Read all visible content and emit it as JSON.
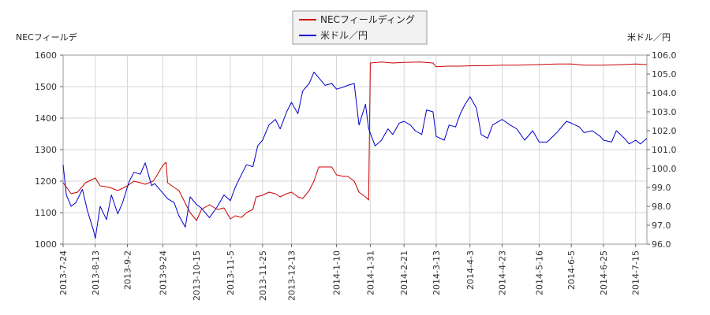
{
  "chart_data": {
    "type": "line",
    "legend_placement": "top-center",
    "grid": true,
    "left_axis_label": "NECフィールデ",
    "right_axis_label": "米ドル／円",
    "left_ylim": [
      1000,
      1600
    ],
    "right_ylim": [
      96.0,
      106.0
    ],
    "left_ticks": [
      "1000",
      "1100",
      "1200",
      "1300",
      "1400",
      "1500",
      "1600"
    ],
    "right_ticks": [
      "96.0",
      "97.0",
      "98.0",
      "99.0",
      "100.0",
      "101.0",
      "102.0",
      "103.0",
      "104.0",
      "105.0",
      "106.0"
    ],
    "x_tick_labels": [
      "2013-7-24",
      "2013-8-13",
      "2013-9-2",
      "2013-9-24",
      "2013-10-15",
      "2013-11-5",
      "2013-11-25",
      "2013-12-13",
      "2014-1-10",
      "2014-1-31",
      "2014-2-21",
      "2014-3-13",
      "2014-4-3",
      "2014-4-23",
      "2014-5-16",
      "2014-6-5",
      "2014-6-25",
      "2014-7-15"
    ],
    "x_range": [
      "2013-7-24",
      "2014-7-22"
    ],
    "series": [
      {
        "name": "NECフィールディング",
        "color": "#cc0000",
        "axis": "left",
        "points": [
          [
            "2013-7-24",
            1195
          ],
          [
            "2013-7-29",
            1160
          ],
          [
            "2013-8-2",
            1165
          ],
          [
            "2013-8-7",
            1195
          ],
          [
            "2013-8-13",
            1210
          ],
          [
            "2013-8-16",
            1185
          ],
          [
            "2013-8-22",
            1180
          ],
          [
            "2013-8-27",
            1170
          ],
          [
            "2013-9-2",
            1185
          ],
          [
            "2013-9-6",
            1200
          ],
          [
            "2013-9-10",
            1195
          ],
          [
            "2013-9-13",
            1190
          ],
          [
            "2013-9-18",
            1200
          ],
          [
            "2013-9-20",
            1215
          ],
          [
            "2013-9-24",
            1250
          ],
          [
            "2013-9-26",
            1260
          ],
          [
            "2013-9-27",
            1195
          ],
          [
            "2013-10-1",
            1180
          ],
          [
            "2013-10-4",
            1170
          ],
          [
            "2013-10-8",
            1130
          ],
          [
            "2013-10-11",
            1100
          ],
          [
            "2013-10-15",
            1075
          ],
          [
            "2013-10-18",
            1110
          ],
          [
            "2013-10-23",
            1125
          ],
          [
            "2013-10-28",
            1110
          ],
          [
            "2013-11-1",
            1115
          ],
          [
            "2013-11-5",
            1080
          ],
          [
            "2013-11-8",
            1090
          ],
          [
            "2013-11-12",
            1085
          ],
          [
            "2013-11-15",
            1100
          ],
          [
            "2013-11-19",
            1110
          ],
          [
            "2013-11-21",
            1150
          ],
          [
            "2013-11-25",
            1155
          ],
          [
            "2013-11-29",
            1165
          ],
          [
            "2013-12-3",
            1160
          ],
          [
            "2013-12-6",
            1150
          ],
          [
            "2013-12-10",
            1160
          ],
          [
            "2013-12-13",
            1165
          ],
          [
            "2013-12-17",
            1150
          ],
          [
            "2013-12-20",
            1145
          ],
          [
            "2013-12-24",
            1170
          ],
          [
            "2013-12-27",
            1200
          ],
          [
            "2013-12-30",
            1245
          ],
          [
            "2014-1-7",
            1245
          ],
          [
            "2014-1-10",
            1220
          ],
          [
            "2014-1-14",
            1215
          ],
          [
            "2014-1-17",
            1215
          ],
          [
            "2014-1-21",
            1200
          ],
          [
            "2014-1-24",
            1165
          ],
          [
            "2014-1-28",
            1150
          ],
          [
            "2014-1-30",
            1140
          ],
          [
            "2014-1-31",
            1575
          ],
          [
            "2014-2-7",
            1578
          ],
          [
            "2014-2-14",
            1575
          ],
          [
            "2014-2-21",
            1577
          ],
          [
            "2014-3-3",
            1578
          ],
          [
            "2014-3-11",
            1575
          ],
          [
            "2014-3-13",
            1563
          ],
          [
            "2014-3-20",
            1565
          ],
          [
            "2014-3-27",
            1565
          ],
          [
            "2014-4-3",
            1566
          ],
          [
            "2014-4-15",
            1567
          ],
          [
            "2014-4-23",
            1568
          ],
          [
            "2014-5-2",
            1568
          ],
          [
            "2014-5-16",
            1570
          ],
          [
            "2014-5-27",
            1572
          ],
          [
            "2014-6-5",
            1572
          ],
          [
            "2014-6-13",
            1568
          ],
          [
            "2014-6-25",
            1568
          ],
          [
            "2014-7-7",
            1570
          ],
          [
            "2014-7-15",
            1572
          ],
          [
            "2014-7-22",
            1570
          ]
        ]
      },
      {
        "name": "米ドル／円",
        "color": "#0000cc",
        "axis": "right",
        "points": [
          [
            "2013-7-24",
            100.2
          ],
          [
            "2013-7-26",
            98.6
          ],
          [
            "2013-7-29",
            98.0
          ],
          [
            "2013-8-1",
            98.2
          ],
          [
            "2013-8-5",
            98.9
          ],
          [
            "2013-8-8",
            97.8
          ],
          [
            "2013-8-12",
            96.7
          ],
          [
            "2013-8-13",
            96.3
          ],
          [
            "2013-8-16",
            98.0
          ],
          [
            "2013-8-20",
            97.3
          ],
          [
            "2013-8-23",
            98.6
          ],
          [
            "2013-8-27",
            97.6
          ],
          [
            "2013-8-30",
            98.2
          ],
          [
            "2013-9-3",
            99.3
          ],
          [
            "2013-9-6",
            99.8
          ],
          [
            "2013-9-10",
            99.7
          ],
          [
            "2013-9-13",
            100.3
          ],
          [
            "2013-9-17",
            99.1
          ],
          [
            "2013-9-19",
            99.2
          ],
          [
            "2013-9-24",
            98.7
          ],
          [
            "2013-9-27",
            98.4
          ],
          [
            "2013-10-1",
            98.2
          ],
          [
            "2013-10-4",
            97.5
          ],
          [
            "2013-10-8",
            96.9
          ],
          [
            "2013-10-11",
            98.5
          ],
          [
            "2013-10-15",
            98.1
          ],
          [
            "2013-10-18",
            97.9
          ],
          [
            "2013-10-23",
            97.4
          ],
          [
            "2013-10-28",
            98.0
          ],
          [
            "2013-11-1",
            98.6
          ],
          [
            "2013-11-5",
            98.3
          ],
          [
            "2013-11-8",
            99.0
          ],
          [
            "2013-11-12",
            99.7
          ],
          [
            "2013-11-15",
            100.2
          ],
          [
            "2013-11-19",
            100.1
          ],
          [
            "2013-11-22",
            101.2
          ],
          [
            "2013-11-25",
            101.5
          ],
          [
            "2013-11-29",
            102.3
          ],
          [
            "2013-12-3",
            102.6
          ],
          [
            "2013-12-6",
            102.1
          ],
          [
            "2013-12-10",
            103.0
          ],
          [
            "2013-12-13",
            103.5
          ],
          [
            "2013-12-17",
            102.9
          ],
          [
            "2013-12-20",
            104.1
          ],
          [
            "2013-12-24",
            104.5
          ],
          [
            "2013-12-27",
            105.1
          ],
          [
            "2013-12-30",
            104.8
          ],
          [
            "2014-1-3",
            104.4
          ],
          [
            "2014-1-7",
            104.5
          ],
          [
            "2014-1-10",
            104.2
          ],
          [
            "2014-1-14",
            104.3
          ],
          [
            "2014-1-17",
            104.4
          ],
          [
            "2014-1-21",
            104.5
          ],
          [
            "2014-1-24",
            102.3
          ],
          [
            "2014-1-28",
            103.4
          ],
          [
            "2014-1-30",
            102.1
          ],
          [
            "2014-2-3",
            101.2
          ],
          [
            "2014-2-7",
            101.5
          ],
          [
            "2014-2-11",
            102.1
          ],
          [
            "2014-2-14",
            101.8
          ],
          [
            "2014-2-18",
            102.4
          ],
          [
            "2014-2-21",
            102.5
          ],
          [
            "2014-2-25",
            102.3
          ],
          [
            "2014-2-28",
            102.0
          ],
          [
            "2014-3-4",
            101.8
          ],
          [
            "2014-3-7",
            103.1
          ],
          [
            "2014-3-11",
            103.0
          ],
          [
            "2014-3-13",
            101.7
          ],
          [
            "2014-3-18",
            101.5
          ],
          [
            "2014-3-21",
            102.3
          ],
          [
            "2014-3-25",
            102.2
          ],
          [
            "2014-3-28",
            102.9
          ],
          [
            "2014-3-31",
            103.4
          ],
          [
            "2014-4-3",
            103.8
          ],
          [
            "2014-4-7",
            103.2
          ],
          [
            "2014-4-10",
            101.8
          ],
          [
            "2014-4-14",
            101.6
          ],
          [
            "2014-4-17",
            102.3
          ],
          [
            "2014-4-23",
            102.6
          ],
          [
            "2014-4-28",
            102.3
          ],
          [
            "2014-5-2",
            102.1
          ],
          [
            "2014-5-7",
            101.5
          ],
          [
            "2014-5-12",
            102.0
          ],
          [
            "2014-5-16",
            101.4
          ],
          [
            "2014-5-21",
            101.4
          ],
          [
            "2014-5-27",
            101.9
          ],
          [
            "2014-6-2",
            102.5
          ],
          [
            "2014-6-5",
            102.4
          ],
          [
            "2014-6-10",
            102.2
          ],
          [
            "2014-6-13",
            101.9
          ],
          [
            "2014-6-18",
            102.0
          ],
          [
            "2014-6-23",
            101.7
          ],
          [
            "2014-6-25",
            101.5
          ],
          [
            "2014-6-30",
            101.4
          ],
          [
            "2014-7-3",
            102.0
          ],
          [
            "2014-7-8",
            101.6
          ],
          [
            "2014-7-11",
            101.3
          ],
          [
            "2014-7-15",
            101.5
          ],
          [
            "2014-7-18",
            101.3
          ],
          [
            "2014-7-22",
            101.6
          ]
        ]
      }
    ]
  }
}
